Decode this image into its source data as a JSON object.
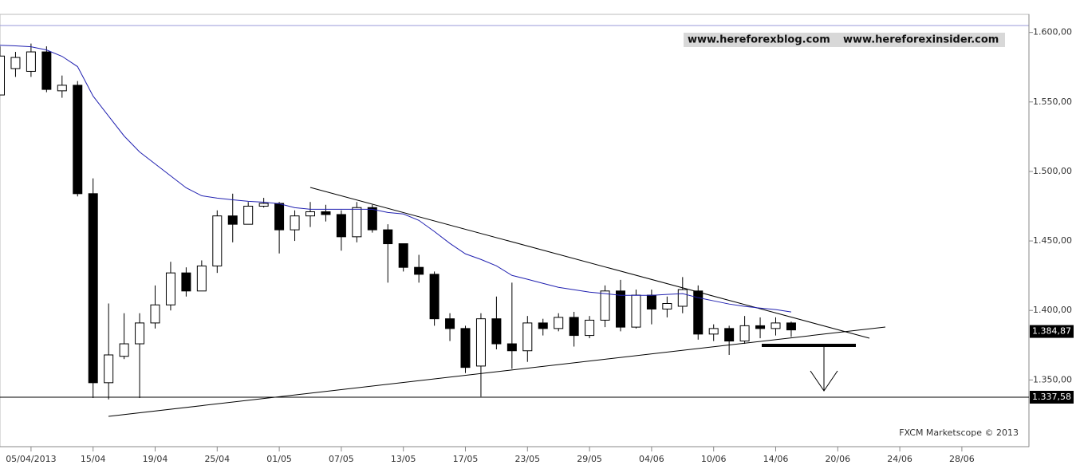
{
  "chart_data": {
    "type": "candlestick",
    "watermark": [
      "www.hereforexblog.com",
      "www.hereforexinsider.com"
    ],
    "credit": "FXCM Marketscope © 2013",
    "categories": [
      null,
      null,
      "05/04/2013",
      null,
      null,
      null,
      "15/04",
      null,
      null,
      null,
      "19/04",
      null,
      null,
      null,
      "25/04",
      null,
      null,
      null,
      "01/05",
      null,
      null,
      null,
      "07/05",
      null,
      null,
      null,
      "13/05",
      null,
      null,
      null,
      "17/05",
      null,
      null,
      null,
      "23/05",
      null,
      null,
      null,
      "29/05",
      null,
      null,
      null,
      "04/06",
      null,
      null,
      null,
      "10/06",
      null,
      null,
      null,
      "14/06",
      null,
      null,
      null,
      "20/06",
      null,
      null,
      null,
      "24/06",
      null,
      null,
      null,
      "28/06",
      null,
      null,
      null,
      null
    ],
    "open": [
      1.555,
      1.574,
      1.572,
      1.586,
      1.558,
      1.562,
      1.484,
      1.348,
      1.367,
      1.376,
      1.391,
      1.404,
      1.427,
      1.414,
      1.432,
      1.468,
      1.462,
      1.475,
      1.477,
      1.458,
      1.468,
      1.471,
      1.469,
      1.453,
      1.474,
      1.458,
      1.448,
      1.431,
      1.426,
      1.394,
      1.387,
      1.36,
      1.394,
      1.376,
      1.371,
      1.391,
      1.387,
      1.395,
      1.382,
      1.393,
      1.414,
      1.388,
      1.411,
      1.401,
      1.403,
      1.414,
      1.383,
      1.387,
      1.378,
      1.389,
      1.387,
      1.391,
      null,
      null,
      null,
      null,
      null,
      null,
      null,
      null,
      null,
      null,
      null,
      null,
      null,
      null,
      null
    ],
    "high": [
      1.59,
      1.586,
      1.592,
      1.59,
      1.569,
      1.565,
      1.495,
      1.405,
      1.398,
      1.398,
      1.418,
      1.435,
      1.431,
      1.436,
      1.472,
      1.484,
      1.478,
      1.481,
      1.478,
      1.472,
      1.478,
      1.476,
      1.472,
      1.478,
      1.476,
      1.462,
      1.448,
      1.44,
      1.428,
      1.398,
      1.389,
      1.398,
      1.41,
      1.42,
      1.396,
      1.394,
      1.398,
      1.399,
      1.396,
      1.418,
      1.422,
      1.415,
      1.415,
      1.41,
      1.424,
      1.418,
      1.39,
      1.389,
      1.396,
      1.395,
      1.395,
      1.392,
      null,
      null,
      null,
      null,
      null,
      null,
      null,
      null,
      null,
      null,
      null,
      null,
      null,
      null,
      null
    ],
    "low": [
      1.555,
      1.568,
      1.568,
      1.557,
      1.553,
      1.482,
      1.337,
      1.336,
      1.365,
      1.337,
      1.387,
      1.4,
      1.41,
      1.414,
      1.427,
      1.449,
      1.462,
      1.474,
      1.441,
      1.45,
      1.46,
      1.464,
      1.443,
      1.449,
      1.456,
      1.42,
      1.428,
      1.42,
      1.389,
      1.378,
      1.355,
      1.338,
      1.372,
      1.358,
      1.363,
      1.382,
      1.385,
      1.374,
      1.38,
      1.388,
      1.385,
      1.387,
      1.39,
      1.395,
      1.398,
      1.379,
      1.378,
      1.368,
      1.376,
      1.38,
      1.382,
      1.381,
      null,
      null,
      null,
      null,
      null,
      null,
      null,
      null,
      null,
      null,
      null,
      null,
      null,
      null,
      null
    ],
    "close": [
      1.583,
      1.582,
      1.586,
      1.559,
      1.562,
      1.484,
      1.348,
      1.368,
      1.376,
      1.391,
      1.404,
      1.427,
      1.414,
      1.432,
      1.468,
      1.462,
      1.475,
      1.477,
      1.458,
      1.468,
      1.471,
      1.469,
      1.453,
      1.474,
      1.458,
      1.448,
      1.431,
      1.426,
      1.394,
      1.387,
      1.359,
      1.394,
      1.376,
      1.371,
      1.391,
      1.387,
      1.395,
      1.382,
      1.393,
      1.414,
      1.388,
      1.411,
      1.401,
      1.405,
      1.415,
      1.383,
      1.387,
      1.378,
      1.389,
      1.387,
      1.391,
      1.386,
      null,
      null,
      null,
      null,
      null,
      null,
      null,
      null,
      null,
      null,
      null,
      null,
      null,
      null,
      null
    ],
    "up_color": "#ffffff",
    "down_color": "#000000",
    "ma": {
      "color": "#2020b0",
      "values": [
        1.5908,
        1.5903,
        1.5897,
        1.5874,
        1.5828,
        1.5754,
        1.5542,
        1.5398,
        1.5255,
        1.514,
        1.5054,
        1.4968,
        1.4882,
        1.4825,
        1.4808,
        1.4796,
        1.4785,
        1.4779,
        1.4768,
        1.4739,
        1.4728,
        1.4728,
        1.4728,
        1.4728,
        1.4728,
        1.4705,
        1.4694,
        1.4648,
        1.4568,
        1.4482,
        1.4407,
        1.4367,
        1.4321,
        1.4252,
        1.4224,
        1.4195,
        1.4166,
        1.4149,
        1.4132,
        1.4121,
        1.4109,
        1.4109,
        1.4109,
        1.4115,
        1.4121,
        1.4092,
        1.4069,
        1.4046,
        1.4029,
        1.4017,
        1.4006,
        1.3989,
        null,
        null,
        null,
        null,
        null,
        null,
        null,
        null,
        null,
        null,
        null,
        null,
        null,
        null,
        null
      ]
    },
    "hline": {
      "value": 1.33758,
      "label": "1.337,58"
    },
    "last_price": {
      "value": 1.38487,
      "label": "1.384,87"
    },
    "ylim": [
      1.302,
      1.613
    ],
    "yticks": [
      {
        "value": 1.35,
        "label": "1.350,00"
      },
      {
        "value": 1.4,
        "label": "1.400,00"
      },
      {
        "value": 1.45,
        "label": "1.450,00"
      },
      {
        "value": 1.5,
        "label": "1.500,00"
      },
      {
        "value": 1.55,
        "label": "1.550,00"
      },
      {
        "value": 1.6,
        "label": "1.600,00"
      }
    ]
  }
}
